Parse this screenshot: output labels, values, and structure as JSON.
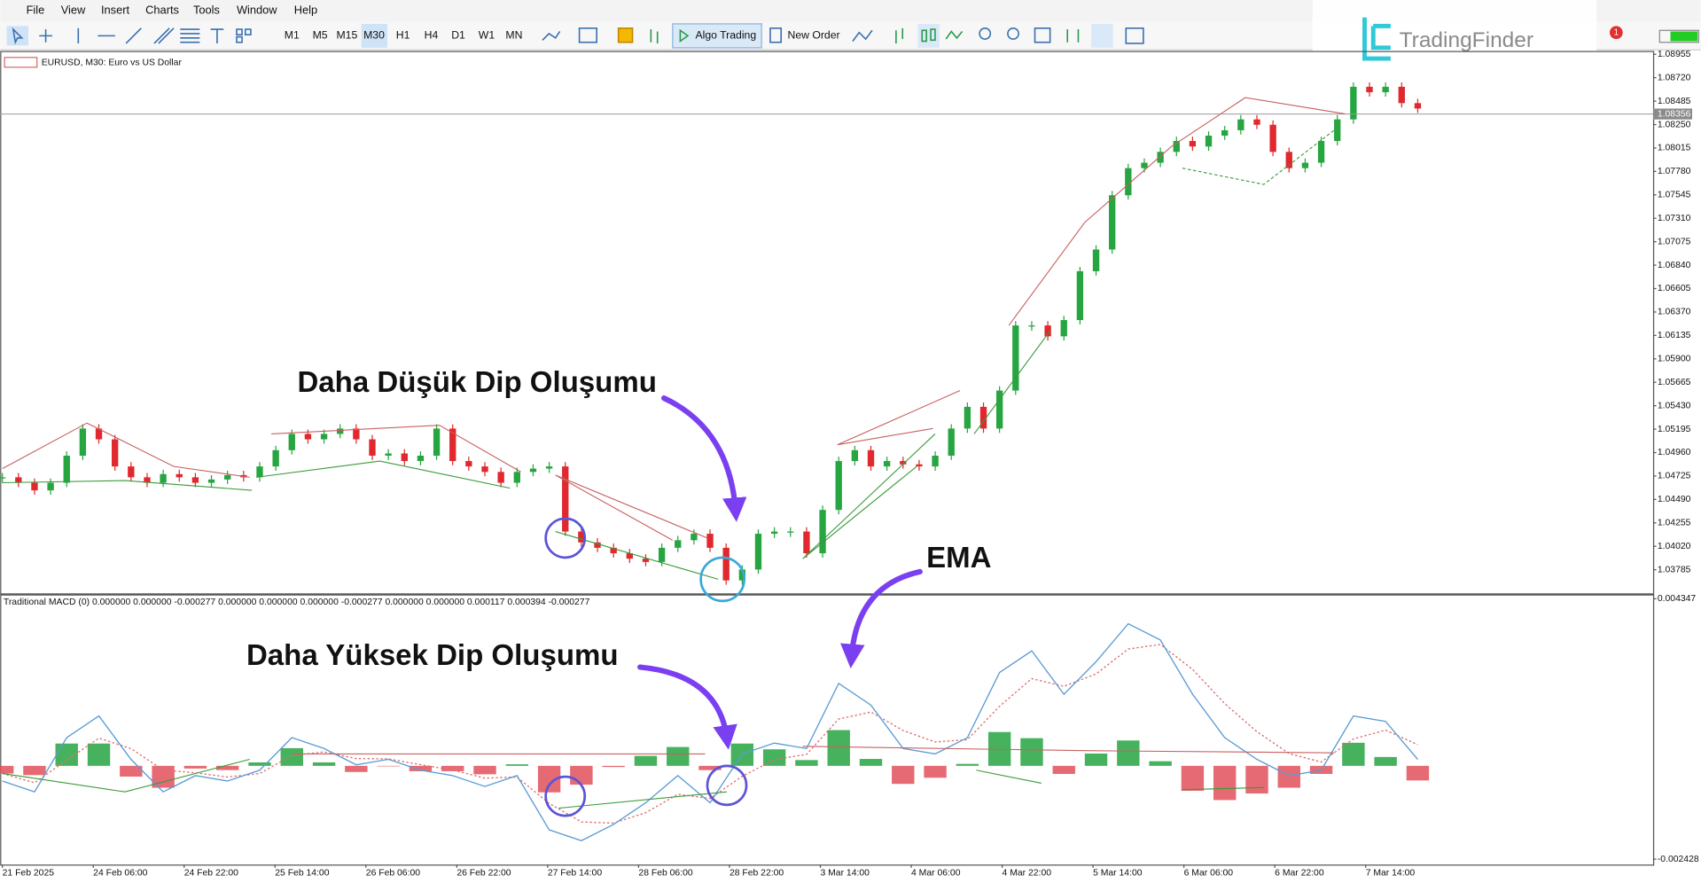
{
  "menu": [
    "File",
    "View",
    "Insert",
    "Charts",
    "Tools",
    "Window",
    "Help"
  ],
  "toolbar": {
    "timeframes": [
      "M1",
      "M5",
      "M15",
      "M30",
      "H1",
      "H4",
      "D1",
      "W1",
      "MN"
    ],
    "algo_trading": "Algo Trading",
    "new_order": "New Order"
  },
  "logo": "TradingFinder",
  "notifications": 1,
  "time_axis": [
    "21 Feb 2025",
    "24 Feb 06:00",
    "24 Feb 22:00",
    "25 Feb 14:00",
    "26 Feb 06:00",
    "26 Feb 22:00",
    "27 Feb 14:00",
    "28 Feb 06:00",
    "28 Feb 22:00",
    "3 Mar 14:00",
    "4 Mar 06:00",
    "4 Mar 22:00",
    "5 Mar 14:00",
    "6 Mar 06:00",
    "6 Mar 22:00",
    "7 Mar 14:00"
  ],
  "chart_data": [
    {
      "type": "candlestick",
      "title": "EURUSD, M30:  Euro vs US Dollar",
      "up_color": "#26a541",
      "down_color": "#e0282e",
      "values": [
        1.04712,
        1.04657,
        1.04581,
        1.04657,
        1.04929,
        1.05201,
        1.05093,
        1.04821,
        1.04712,
        1.04657,
        1.04744,
        1.04712,
        1.04657,
        1.0469,
        1.04734,
        1.04712,
        1.04821,
        1.04984,
        1.05147,
        1.05093,
        1.05147,
        1.05201,
        1.05093,
        1.04929,
        1.04951,
        1.04875,
        1.04929,
        1.05201,
        1.04875,
        1.04821,
        1.04766,
        1.04657,
        1.04766,
        1.04799,
        1.04821,
        1.04168,
        1.04059,
        1.04005,
        1.0395,
        1.03896,
        1.03863,
        1.04005,
        1.04081,
        1.04146,
        1.04005,
        1.03678,
        1.03787,
        1.04146,
        1.04168,
        1.04168,
        1.0395,
        1.04385,
        1.04875,
        1.04984,
        1.04821,
        1.04875,
        1.04842,
        1.04821,
        1.04929,
        1.05201,
        1.05419,
        1.05201,
        1.05582,
        1.06235,
        1.06235,
        1.06126,
        1.06289,
        1.06779,
        1.06997,
        1.07541,
        1.07813,
        1.07867,
        1.07976,
        1.08085,
        1.0803,
        1.08139,
        1.08193,
        1.08302,
        1.08248,
        1.07976,
        1.07813,
        1.07867,
        1.08085,
        1.08302,
        1.08629,
        1.08574,
        1.08629,
        1.08465,
        1.08411
      ],
      "current_price": 1.08356,
      "ylim": [
        1.03537,
        1.08988
      ],
      "yticks": [
        {
          "value": 1.08955,
          "label": "1.08955"
        },
        {
          "value": 1.0872,
          "label": "1.08720"
        },
        {
          "value": 1.08485,
          "label": "1.08485"
        },
        {
          "value": 1.0825,
          "label": "1.08250"
        },
        {
          "value": 1.08015,
          "label": "1.08015"
        },
        {
          "value": 1.0778,
          "label": "1.07780"
        },
        {
          "value": 1.07545,
          "label": "1.07545"
        },
        {
          "value": 1.0731,
          "label": "1.07310"
        },
        {
          "value": 1.07075,
          "label": "1.07075"
        },
        {
          "value": 1.0684,
          "label": "1.06840"
        },
        {
          "value": 1.06605,
          "label": "1.06605"
        },
        {
          "value": 1.0637,
          "label": "1.06370"
        },
        {
          "value": 1.06135,
          "label": "1.06135"
        },
        {
          "value": 1.059,
          "label": "1.05900"
        },
        {
          "value": 1.05665,
          "label": "1.05665"
        },
        {
          "value": 1.0543,
          "label": "1.05430"
        },
        {
          "value": 1.05195,
          "label": "1.05195"
        },
        {
          "value": 1.0496,
          "label": "1.04960"
        },
        {
          "value": 1.04725,
          "label": "1.04725"
        },
        {
          "value": 1.0449,
          "label": "1.04490"
        },
        {
          "value": 1.04255,
          "label": "1.04255"
        },
        {
          "value": 1.0402,
          "label": "1.04020"
        },
        {
          "value": 1.03785,
          "label": "1.03785"
        }
      ],
      "annotation": "Daha Düşük Dip Oluşumu"
    },
    {
      "type": "macd",
      "title": "Traditional MACD (0) 0.000000 0.000000 -0.000277 0.000000 0.000000 0.000000 -0.000277 0.000000 0.000000 0.000117 0.000394 -0.000277",
      "macd_color": "#5b9bd5",
      "signal_color": "#e07070",
      "up_color": "#26a541",
      "down_color": "#e0505a",
      "macd": [
        -0.000395,
        -0.000678,
        0.000734,
        0.001299,
        0.000169,
        -0.000678,
        -0.000254,
        -0.000395,
        -0.000113,
        0.000734,
        0.000452,
        2.8e-05,
        0.000169,
        -0.000113,
        -0.000254,
        -0.000536,
        -0.000254,
        -0.001666,
        -0.001948,
        -0.001524,
        -0.00096,
        -0.000254,
        -0.00096,
        0.000311,
        0.000593,
        0.000452,
        0.002145,
        0.001581,
        0.000452,
        0.000311,
        0.000734,
        0.002428,
        0.002992,
        0.001863,
        0.00271,
        0.003698,
        0.003275,
        0.001863,
        0.000734,
        0.000169,
        -0.000254,
        -0.000113,
        0.001299,
        0.001157,
        0.000169
      ],
      "signal": [
        -0.0002,
        -0.00044,
        0.00015,
        0.00072,
        0.00045,
        -0.00011,
        -0.00018,
        -0.00029,
        -0.0002,
        0.00027,
        0.00036,
        0.00019,
        0.00018,
        3e-05,
        -0.00011,
        -0.00032,
        -0.00029,
        -0.00098,
        -0.00146,
        -0.00149,
        -0.00122,
        -0.00074,
        -0.00085,
        -0.00027,
        0.00016,
        0.0003,
        0.00122,
        0.0014,
        0.00092,
        0.00062,
        0.00068,
        0.00155,
        0.00227,
        0.00207,
        0.00239,
        0.00304,
        0.00316,
        0.00251,
        0.00162,
        0.00089,
        0.00032,
        0.0001,
        0.0007,
        0.00093,
        0.00055
      ],
      "histogram": [
        -0.0002,
        -0.00024,
        0.00058,
        0.00058,
        -0.00028,
        -0.00057,
        -7e-05,
        -0.00011,
        9e-05,
        0.00046,
        9e-05,
        -0.00016,
        -1e-05,
        -0.00014,
        -0.00014,
        -0.00022,
        4e-05,
        -0.00069,
        -0.00049,
        -3e-05,
        0.00026,
        0.00049,
        -0.00011,
        0.00058,
        0.00043,
        0.00015,
        0.00093,
        0.00018,
        -0.00047,
        -0.00031,
        5e-05,
        0.00088,
        0.00072,
        -0.00021,
        0.00032,
        0.00066,
        0.00012,
        -0.00065,
        -0.00089,
        -0.00072,
        -0.00057,
        -0.00021,
        0.0006,
        0.00023,
        -0.00038
      ],
      "ylim": [
        -0.002569,
        0.004432
      ],
      "yticks": [
        0.004347,
        -0.002428
      ],
      "annotations": [
        "Daha Yüksek Dip Oluşumu",
        "EMA"
      ]
    }
  ]
}
